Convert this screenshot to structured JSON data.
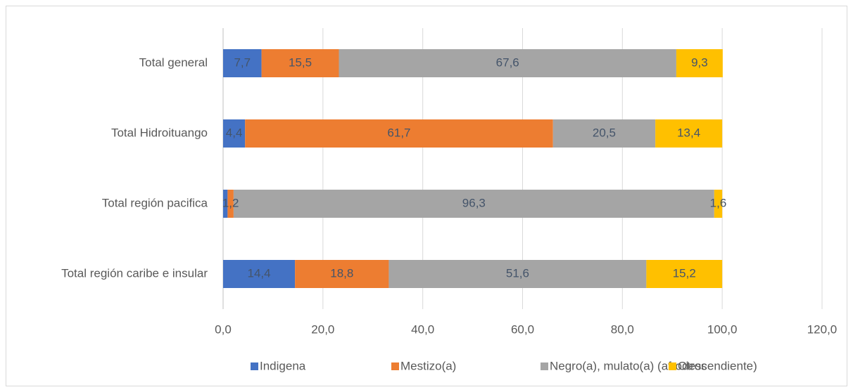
{
  "chart_data": {
    "type": "stacked-barh",
    "categories": [
      "Total general",
      "Total Hidroituango",
      "Total región pacifica",
      "Total región caribe e insular"
    ],
    "series": [
      {
        "name": "Indigena",
        "color": "#4472c4",
        "values": [
          7.7,
          4.4,
          0.9,
          14.4
        ],
        "value_labels": [
          "7,7",
          "4,4",
          null,
          "14,4"
        ]
      },
      {
        "name": "Mestizo(a)",
        "color": "#ed7d31",
        "values": [
          15.5,
          61.7,
          1.2,
          18.8
        ],
        "value_labels": [
          "15,5",
          "61,7",
          "1,2",
          "18,8"
        ]
      },
      {
        "name": "Negro(a), mulato(a) (afrodescendiente)",
        "color": "#a5a5a5",
        "values": [
          67.6,
          20.5,
          96.3,
          51.6
        ],
        "value_labels": [
          "67,6",
          "20,5",
          "96,3",
          "51,6"
        ]
      },
      {
        "name": "Otros",
        "color": "#ffc000",
        "values": [
          9.3,
          13.4,
          1.6,
          15.2
        ],
        "value_labels": [
          "9,3",
          "13,4",
          "1,6",
          "15,2"
        ]
      }
    ],
    "xlim": [
      0,
      120
    ],
    "xticks": [
      {
        "value": 0,
        "label": "0,0"
      },
      {
        "value": 20,
        "label": "20,0"
      },
      {
        "value": 40,
        "label": "40,0"
      },
      {
        "value": 60,
        "label": "60,0"
      },
      {
        "value": 80,
        "label": "80,0"
      },
      {
        "value": 100,
        "label": "100,0"
      },
      {
        "value": 120,
        "label": "120,0"
      }
    ],
    "grid": true,
    "legend": "bottom"
  }
}
